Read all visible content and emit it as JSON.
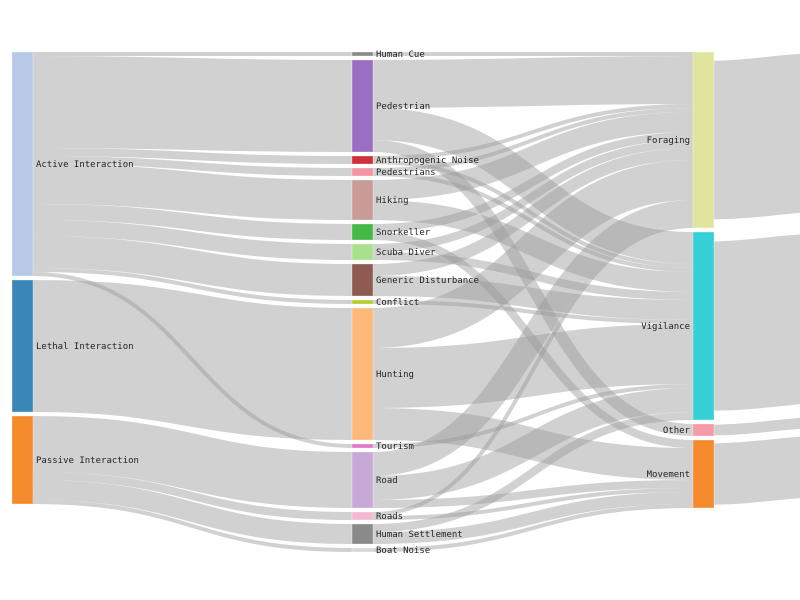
{
  "chart_data": {
    "type": "sankey",
    "columns": [
      {
        "nodes": [
          {
            "id": "active",
            "label": "Active Interaction",
            "color": "#b8c9e8"
          },
          {
            "id": "lethal",
            "label": "Lethal Interaction",
            "color": "#3b86b8"
          },
          {
            "id": "passive",
            "label": "Passive Interaction",
            "color": "#f58a2c"
          }
        ]
      },
      {
        "nodes": [
          {
            "id": "human_cue",
            "label": "Human Cue",
            "color": "#8a8a8a"
          },
          {
            "id": "pedestrian",
            "label": "Pedestrian",
            "color": "#9b6ec4"
          },
          {
            "id": "anthro_noise",
            "label": "Anthropogenic Noise",
            "color": "#d0303a"
          },
          {
            "id": "pedestrians",
            "label": "Pedestrians",
            "color": "#f494a4"
          },
          {
            "id": "hiking",
            "label": "Hiking",
            "color": "#c99a96"
          },
          {
            "id": "snorkeller",
            "label": "Snorkeller",
            "color": "#45b846"
          },
          {
            "id": "scuba",
            "label": "Scuba Diver",
            "color": "#a8e08c"
          },
          {
            "id": "generic",
            "label": "Generic Disturbance",
            "color": "#8f5a50"
          },
          {
            "id": "conflict",
            "label": "Conflict",
            "color": "#b8cc2c"
          },
          {
            "id": "hunting",
            "label": "Hunting",
            "color": "#fdb87a"
          },
          {
            "id": "tourism",
            "label": "Tourism",
            "color": "#e07ac8"
          },
          {
            "id": "road",
            "label": "Road",
            "color": "#c9a8d8"
          },
          {
            "id": "roads",
            "label": "Roads",
            "color": "#f4b8d0"
          },
          {
            "id": "settlement",
            "label": "Human Settlement",
            "color": "#8a8a8a"
          },
          {
            "id": "boat",
            "label": "Boat Noise",
            "color": "#d8d8d8"
          }
        ]
      },
      {
        "nodes": [
          {
            "id": "foraging",
            "label": "Foraging",
            "color": "#dfe59e"
          },
          {
            "id": "vigilance",
            "label": "Vigilance",
            "color": "#35d1d6"
          },
          {
            "id": "other",
            "label": "Other",
            "color": "#f59aa8"
          },
          {
            "id": "movement",
            "label": "Movement",
            "color": "#f58a2c"
          }
        ]
      }
    ],
    "links": [
      {
        "source": "active",
        "target": "human_cue",
        "value": 1
      },
      {
        "source": "active",
        "target": "pedestrian",
        "value": 23
      },
      {
        "source": "active",
        "target": "anthro_noise",
        "value": 2
      },
      {
        "source": "active",
        "target": "pedestrians",
        "value": 2
      },
      {
        "source": "active",
        "target": "hiking",
        "value": 10
      },
      {
        "source": "active",
        "target": "snorkeller",
        "value": 4
      },
      {
        "source": "active",
        "target": "scuba",
        "value": 4
      },
      {
        "source": "active",
        "target": "generic",
        "value": 8
      },
      {
        "source": "active",
        "target": "conflict",
        "value": 1
      },
      {
        "source": "active",
        "target": "tourism",
        "value": 1
      },
      {
        "source": "lethal",
        "target": "hunting",
        "value": 33
      },
      {
        "source": "passive",
        "target": "road",
        "value": 14
      },
      {
        "source": "passive",
        "target": "roads",
        "value": 2
      },
      {
        "source": "passive",
        "target": "settlement",
        "value": 5
      },
      {
        "source": "passive",
        "target": "boat",
        "value": 1
      },
      {
        "source": "human_cue",
        "target": "foraging",
        "value": 1
      },
      {
        "source": "pedestrian",
        "target": "foraging",
        "value": 12
      },
      {
        "source": "pedestrian",
        "target": "vigilance",
        "value": 8
      },
      {
        "source": "pedestrian",
        "target": "other",
        "value": 3
      },
      {
        "source": "anthro_noise",
        "target": "foraging",
        "value": 1
      },
      {
        "source": "anthro_noise",
        "target": "vigilance",
        "value": 1
      },
      {
        "source": "pedestrians",
        "target": "foraging",
        "value": 1
      },
      {
        "source": "pedestrians",
        "target": "vigilance",
        "value": 1
      },
      {
        "source": "hiking",
        "target": "foraging",
        "value": 5
      },
      {
        "source": "hiking",
        "target": "vigilance",
        "value": 5
      },
      {
        "source": "snorkeller",
        "target": "foraging",
        "value": 2
      },
      {
        "source": "snorkeller",
        "target": "movement",
        "value": 2
      },
      {
        "source": "scuba",
        "target": "foraging",
        "value": 2
      },
      {
        "source": "scuba",
        "target": "vigilance",
        "value": 2
      },
      {
        "source": "generic",
        "target": "foraging",
        "value": 3
      },
      {
        "source": "generic",
        "target": "vigilance",
        "value": 5
      },
      {
        "source": "conflict",
        "target": "vigilance",
        "value": 1
      },
      {
        "source": "hunting",
        "target": "foraging",
        "value": 10
      },
      {
        "source": "hunting",
        "target": "vigilance",
        "value": 15
      },
      {
        "source": "hunting",
        "target": "movement",
        "value": 8
      },
      {
        "source": "tourism",
        "target": "vigilance",
        "value": 1
      },
      {
        "source": "road",
        "target": "foraging",
        "value": 6
      },
      {
        "source": "road",
        "target": "vigilance",
        "value": 6
      },
      {
        "source": "road",
        "target": "movement",
        "value": 2
      },
      {
        "source": "roads",
        "target": "foraging",
        "value": 1
      },
      {
        "source": "roads",
        "target": "movement",
        "value": 1
      },
      {
        "source": "settlement",
        "target": "vigilance",
        "value": 2
      },
      {
        "source": "settlement",
        "target": "movement",
        "value": 3
      },
      {
        "source": "boat",
        "target": "movement",
        "value": 1
      }
    ]
  }
}
